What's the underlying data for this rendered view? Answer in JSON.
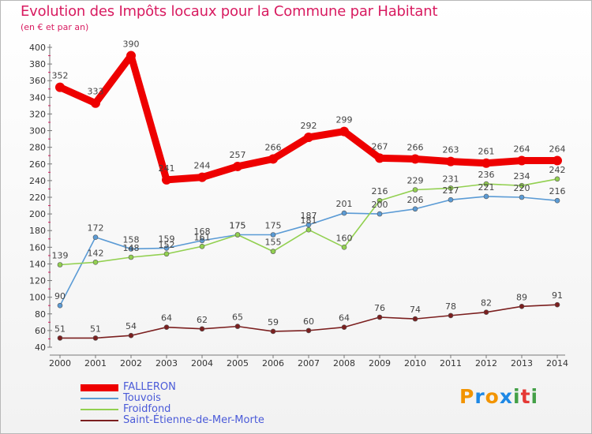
{
  "title": "Evolution des Impôts locaux pour la Commune par Habitant",
  "subtitle": "(en € et par an)",
  "logo": {
    "letters": [
      "P",
      "r",
      "o",
      "x",
      "i",
      "t",
      "i"
    ],
    "colors": [
      "#f29400",
      "#1e88e5",
      "#f29400",
      "#1e88e5",
      "#43a047",
      "#e53935",
      "#43a047"
    ]
  },
  "chart_data": {
    "type": "line",
    "title": "Evolution des Impôts locaux pour la Commune par Habitant",
    "subtitle": "(en € et par an)",
    "x": [
      "2000",
      "2001",
      "2002",
      "2003",
      "2004",
      "2005",
      "2006",
      "2007",
      "2008",
      "2009",
      "2010",
      "2011",
      "2012",
      "2013",
      "2014"
    ],
    "ylim": [
      40,
      400
    ],
    "yticks": [
      40,
      60,
      80,
      100,
      120,
      140,
      160,
      180,
      200,
      220,
      240,
      260,
      280,
      300,
      320,
      340,
      360,
      380,
      400
    ],
    "grid": false,
    "legend_position": "bottom-left",
    "series": [
      {
        "name": "FALLERON",
        "color": "#ee0000",
        "values": [
          352,
          333,
          390,
          241,
          244,
          257,
          266,
          292,
          299,
          267,
          266,
          263,
          261,
          264,
          264
        ]
      },
      {
        "name": "Touvois",
        "color": "#5b9bd5",
        "values": [
          90,
          172,
          158,
          159,
          168,
          175,
          175,
          187,
          201,
          200,
          206,
          217,
          221,
          220,
          216
        ]
      },
      {
        "name": "Froidfond",
        "color": "#92d050",
        "values": [
          139,
          142,
          148,
          152,
          161,
          175,
          155,
          181,
          160,
          216,
          229,
          231,
          236,
          234,
          242
        ]
      },
      {
        "name": "Saint-Étienne-de-Mer-Morte",
        "color": "#7b1f1f",
        "values": [
          51,
          51,
          54,
          64,
          62,
          65,
          59,
          60,
          64,
          76,
          74,
          78,
          82,
          89,
          91
        ]
      }
    ]
  }
}
